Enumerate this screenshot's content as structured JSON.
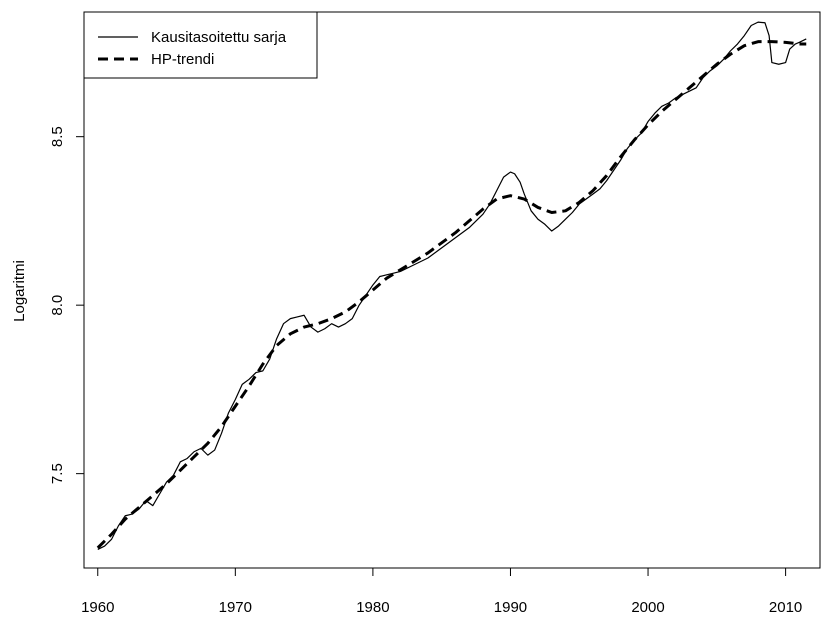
{
  "chart_data": {
    "type": "line",
    "title": "",
    "xlabel": "",
    "ylabel": "Logaritmi",
    "xlim": [
      1959.0,
      2012.5
    ],
    "ylim": [
      7.22,
      8.87
    ],
    "x_ticks": [
      1960,
      1970,
      1980,
      1990,
      2000,
      2010
    ],
    "x_tick_labels": [
      "1960",
      "1970",
      "1980",
      "1990",
      "2000",
      "2010"
    ],
    "y_ticks": [
      7.5,
      8.0,
      8.5
    ],
    "y_tick_labels": [
      "7.5",
      "8.0",
      "8.5"
    ],
    "grid": false,
    "legend_position": "top-left",
    "series": [
      {
        "name": "Kausitasoitettu sarja",
        "style": "solid",
        "color": "#000000",
        "points": [
          [
            1960.0,
            7.275
          ],
          [
            1960.5,
            7.285
          ],
          [
            1961.0,
            7.305
          ],
          [
            1961.5,
            7.345
          ],
          [
            1962.0,
            7.375
          ],
          [
            1962.5,
            7.38
          ],
          [
            1963.0,
            7.395
          ],
          [
            1963.5,
            7.42
          ],
          [
            1964.0,
            7.405
          ],
          [
            1964.5,
            7.44
          ],
          [
            1965.0,
            7.475
          ],
          [
            1965.5,
            7.495
          ],
          [
            1966.0,
            7.535
          ],
          [
            1966.5,
            7.545
          ],
          [
            1967.0,
            7.565
          ],
          [
            1967.5,
            7.575
          ],
          [
            1968.0,
            7.555
          ],
          [
            1968.5,
            7.57
          ],
          [
            1969.0,
            7.62
          ],
          [
            1969.5,
            7.68
          ],
          [
            1970.0,
            7.72
          ],
          [
            1970.5,
            7.765
          ],
          [
            1971.0,
            7.78
          ],
          [
            1971.5,
            7.8
          ],
          [
            1972.0,
            7.805
          ],
          [
            1972.5,
            7.84
          ],
          [
            1973.0,
            7.9
          ],
          [
            1973.5,
            7.945
          ],
          [
            1974.0,
            7.96
          ],
          [
            1974.5,
            7.965
          ],
          [
            1975.0,
            7.97
          ],
          [
            1975.5,
            7.935
          ],
          [
            1976.0,
            7.92
          ],
          [
            1976.5,
            7.93
          ],
          [
            1977.0,
            7.945
          ],
          [
            1977.5,
            7.935
          ],
          [
            1978.0,
            7.945
          ],
          [
            1978.5,
            7.96
          ],
          [
            1979.0,
            8.0
          ],
          [
            1979.5,
            8.03
          ],
          [
            1980.0,
            8.06
          ],
          [
            1980.5,
            8.085
          ],
          [
            1981.0,
            8.09
          ],
          [
            1981.5,
            8.095
          ],
          [
            1982.0,
            8.1
          ],
          [
            1983.0,
            8.12
          ],
          [
            1984.0,
            8.14
          ],
          [
            1985.0,
            8.17
          ],
          [
            1986.0,
            8.2
          ],
          [
            1987.0,
            8.23
          ],
          [
            1988.0,
            8.27
          ],
          [
            1988.5,
            8.3
          ],
          [
            1989.0,
            8.34
          ],
          [
            1989.5,
            8.38
          ],
          [
            1990.0,
            8.395
          ],
          [
            1990.3,
            8.39
          ],
          [
            1990.7,
            8.365
          ],
          [
            1991.0,
            8.33
          ],
          [
            1991.5,
            8.28
          ],
          [
            1992.0,
            8.255
          ],
          [
            1992.5,
            8.24
          ],
          [
            1993.0,
            8.22
          ],
          [
            1993.5,
            8.235
          ],
          [
            1994.0,
            8.255
          ],
          [
            1994.5,
            8.275
          ],
          [
            1995.0,
            8.3
          ],
          [
            1995.5,
            8.315
          ],
          [
            1996.0,
            8.33
          ],
          [
            1996.5,
            8.345
          ],
          [
            1997.0,
            8.37
          ],
          [
            1997.5,
            8.4
          ],
          [
            1998.0,
            8.43
          ],
          [
            1998.5,
            8.465
          ],
          [
            1999.0,
            8.49
          ],
          [
            1999.5,
            8.51
          ],
          [
            2000.0,
            8.545
          ],
          [
            2000.5,
            8.57
          ],
          [
            2001.0,
            8.59
          ],
          [
            2001.5,
            8.6
          ],
          [
            2002.0,
            8.615
          ],
          [
            2002.5,
            8.625
          ],
          [
            2003.0,
            8.635
          ],
          [
            2003.5,
            8.645
          ],
          [
            2004.0,
            8.675
          ],
          [
            2004.5,
            8.695
          ],
          [
            2005.0,
            8.71
          ],
          [
            2005.5,
            8.73
          ],
          [
            2006.0,
            8.755
          ],
          [
            2006.5,
            8.775
          ],
          [
            2007.0,
            8.8
          ],
          [
            2007.5,
            8.83
          ],
          [
            2008.0,
            8.84
          ],
          [
            2008.5,
            8.838
          ],
          [
            2008.8,
            8.8
          ],
          [
            2009.0,
            8.72
          ],
          [
            2009.5,
            8.715
          ],
          [
            2010.0,
            8.72
          ],
          [
            2010.3,
            8.76
          ],
          [
            2010.7,
            8.775
          ],
          [
            2011.0,
            8.78
          ],
          [
            2011.5,
            8.79
          ]
        ]
      },
      {
        "name": "HP-trendi",
        "style": "dashed",
        "color": "#000000",
        "points": [
          [
            1960.0,
            7.28
          ],
          [
            1961.0,
            7.32
          ],
          [
            1962.0,
            7.365
          ],
          [
            1963.0,
            7.4
          ],
          [
            1964.0,
            7.435
          ],
          [
            1965.0,
            7.47
          ],
          [
            1966.0,
            7.51
          ],
          [
            1967.0,
            7.55
          ],
          [
            1968.0,
            7.59
          ],
          [
            1969.0,
            7.64
          ],
          [
            1970.0,
            7.7
          ],
          [
            1971.0,
            7.76
          ],
          [
            1972.0,
            7.825
          ],
          [
            1973.0,
            7.88
          ],
          [
            1974.0,
            7.915
          ],
          [
            1975.0,
            7.935
          ],
          [
            1976.0,
            7.945
          ],
          [
            1977.0,
            7.96
          ],
          [
            1978.0,
            7.98
          ],
          [
            1979.0,
            8.01
          ],
          [
            1980.0,
            8.045
          ],
          [
            1981.0,
            8.08
          ],
          [
            1982.0,
            8.105
          ],
          [
            1983.0,
            8.13
          ],
          [
            1984.0,
            8.155
          ],
          [
            1985.0,
            8.185
          ],
          [
            1986.0,
            8.215
          ],
          [
            1987.0,
            8.25
          ],
          [
            1988.0,
            8.285
          ],
          [
            1989.0,
            8.315
          ],
          [
            1990.0,
            8.325
          ],
          [
            1991.0,
            8.315
          ],
          [
            1992.0,
            8.29
          ],
          [
            1993.0,
            8.275
          ],
          [
            1994.0,
            8.28
          ],
          [
            1995.0,
            8.305
          ],
          [
            1996.0,
            8.34
          ],
          [
            1997.0,
            8.385
          ],
          [
            1998.0,
            8.44
          ],
          [
            1999.0,
            8.49
          ],
          [
            2000.0,
            8.535
          ],
          [
            2001.0,
            8.575
          ],
          [
            2002.0,
            8.61
          ],
          [
            2003.0,
            8.645
          ],
          [
            2004.0,
            8.68
          ],
          [
            2005.0,
            8.715
          ],
          [
            2006.0,
            8.745
          ],
          [
            2007.0,
            8.77
          ],
          [
            2008.0,
            8.782
          ],
          [
            2009.0,
            8.782
          ],
          [
            2010.0,
            8.78
          ],
          [
            2011.0,
            8.775
          ],
          [
            2011.5,
            8.775
          ]
        ]
      }
    ]
  }
}
